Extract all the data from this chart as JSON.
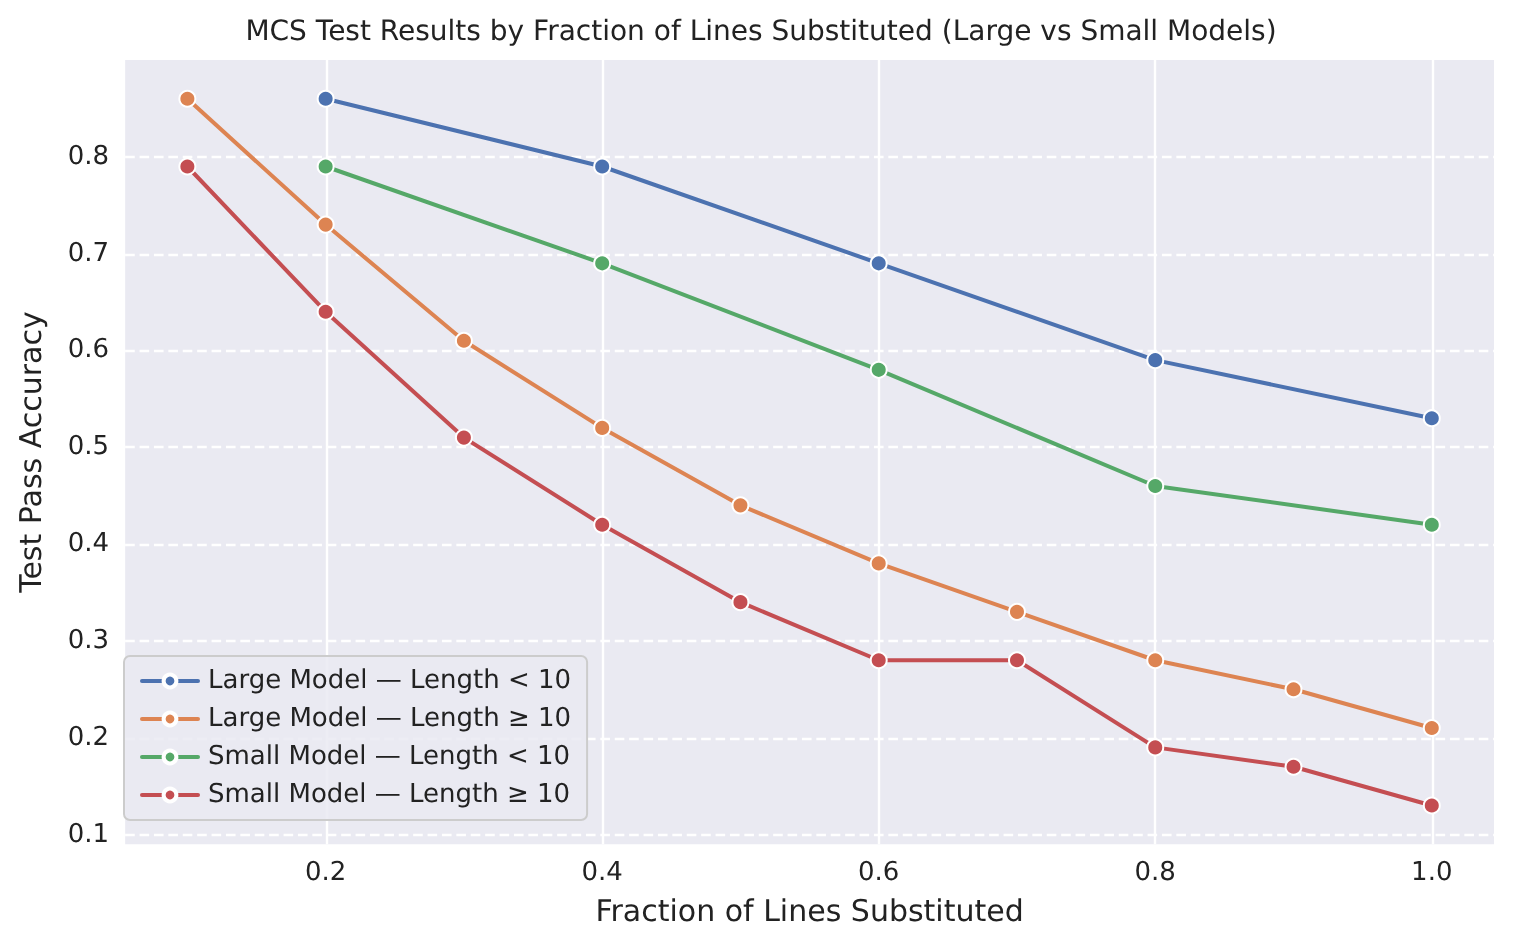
{
  "chart_data": {
    "type": "line",
    "title": "MCS Test Results by Fraction of Lines Substituted (Large vs Small Models)",
    "xlabel": "Fraction of Lines Substituted",
    "ylabel": "Test Pass Accuracy",
    "xlim": [
      0.055,
      1.045
    ],
    "xticks": [
      {
        "value": 0.2,
        "label": "0.2"
      },
      {
        "value": 0.4,
        "label": "0.4"
      },
      {
        "value": 0.6,
        "label": "0.6"
      },
      {
        "value": 0.8,
        "label": "0.8"
      },
      {
        "value": 1.0,
        "label": "1.0"
      }
    ],
    "ylim": [
      0.09,
      0.9
    ],
    "yticks": [
      0.1,
      0.2,
      0.3,
      0.4,
      0.5,
      0.6,
      0.7,
      0.8
    ],
    "grid": true,
    "legend": "bottom left",
    "marker": "circle",
    "line_style": "solid",
    "series": [
      {
        "name": "Large Model — Length < 10",
        "color": "#4c72b0",
        "x": [
          0.2,
          0.4,
          0.6,
          0.8,
          1.0
        ],
        "values": [
          0.86,
          0.79,
          0.69,
          0.59,
          0.53
        ]
      },
      {
        "name": "Large Model — Length ≥ 10",
        "color": "#dd8452",
        "x": [
          0.1,
          0.2,
          0.3,
          0.4,
          0.5,
          0.6,
          0.7,
          0.8,
          0.9,
          1.0
        ],
        "values": [
          0.86,
          0.73,
          0.61,
          0.52,
          0.44,
          0.38,
          0.33,
          0.28,
          0.25,
          0.21
        ]
      },
      {
        "name": "Small Model — Length < 10",
        "color": "#55a868",
        "x": [
          0.2,
          0.4,
          0.6,
          0.8,
          1.0
        ],
        "values": [
          0.79,
          0.69,
          0.58,
          0.46,
          0.42
        ]
      },
      {
        "name": "Small Model — Length ≥ 10",
        "color": "#c44e52",
        "x": [
          0.1,
          0.2,
          0.3,
          0.4,
          0.5,
          0.6,
          0.7,
          0.8,
          0.9,
          1.0
        ],
        "values": [
          0.79,
          0.64,
          0.51,
          0.42,
          0.34,
          0.28,
          0.28,
          0.19,
          0.17,
          0.13
        ]
      }
    ]
  }
}
